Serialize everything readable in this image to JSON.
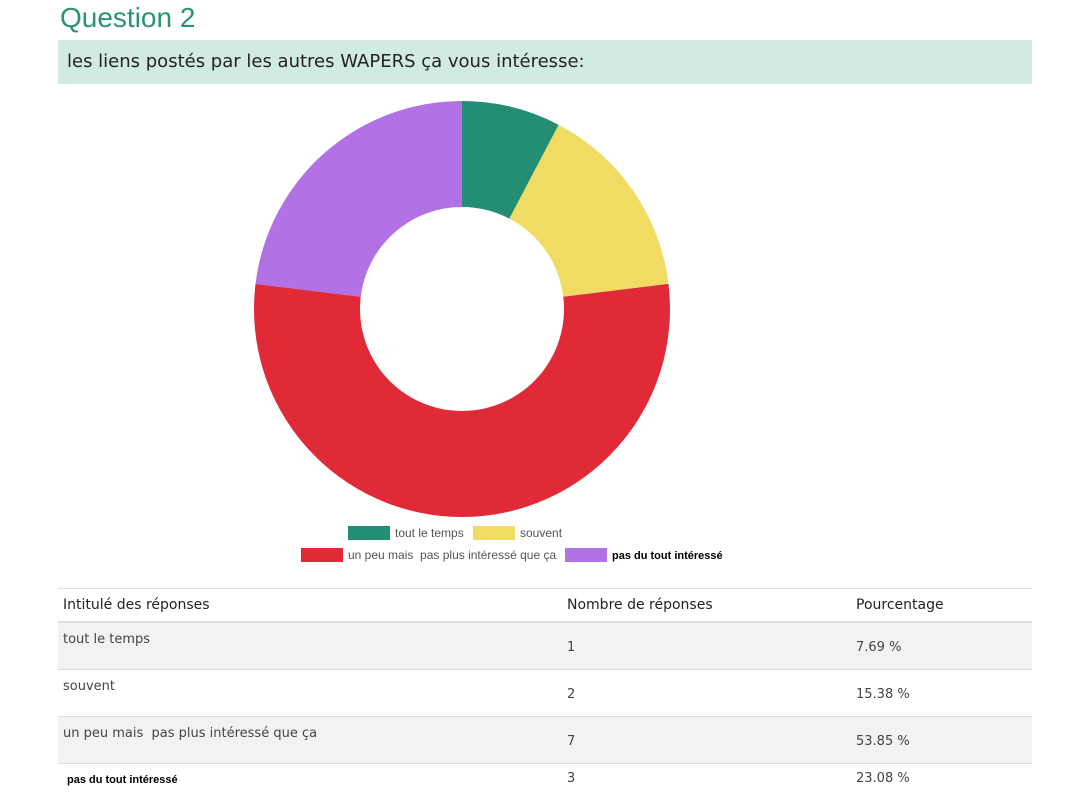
{
  "question": {
    "title": "Question 2",
    "text": "les liens postés par les autres WAPERS ça vous intéresse:"
  },
  "chart_data": {
    "type": "pie",
    "donut": true,
    "categories": [
      "tout le temps",
      "souvent",
      "un peu mais  pas plus intéressé que ça",
      "pas du tout intéressé"
    ],
    "values": [
      1,
      2,
      7,
      3
    ],
    "colors": [
      "#248e75",
      "#f0dc63",
      "#e02a37",
      "#b272e6"
    ],
    "legend_position": "bottom"
  },
  "table": {
    "headers": [
      "Intitulé des réponses",
      "Nombre de réponses",
      "Pourcentage"
    ],
    "rows": [
      {
        "label": "tout le temps",
        "count": "1",
        "percent": "7.69 %"
      },
      {
        "label": "souvent",
        "count": "2",
        "percent": "15.38 %"
      },
      {
        "label": "un peu mais  pas plus intéressé que ça",
        "count": "7",
        "percent": "53.85 %"
      },
      {
        "label": "pas du tout intéressé",
        "count": "3",
        "percent": "23.08 %"
      }
    ]
  }
}
